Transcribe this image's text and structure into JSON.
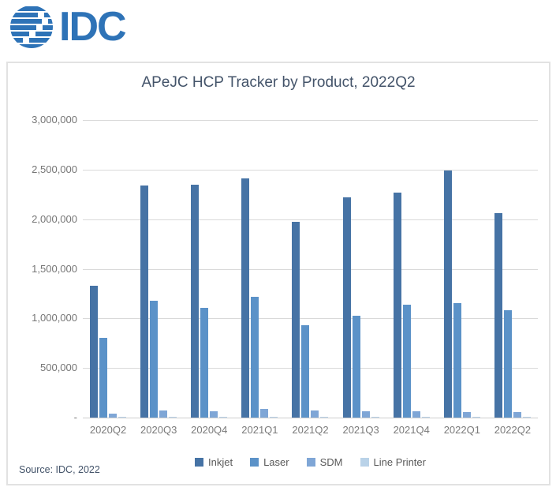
{
  "logo": {
    "text": "IDC",
    "color": "#2E73B7"
  },
  "source": "Source: IDC, 2022",
  "chart_data": {
    "type": "bar",
    "title": "APeJC HCP Tracker by Product, 2022Q2",
    "categories": [
      "2020Q2",
      "2020Q3",
      "2020Q4",
      "2021Q1",
      "2021Q2",
      "2021Q3",
      "2021Q4",
      "2022Q1",
      "2022Q2"
    ],
    "series": [
      {
        "name": "Inkjet",
        "color": "#4673A5",
        "values": [
          1330000,
          2340000,
          2350000,
          2410000,
          1970000,
          2220000,
          2270000,
          2490000,
          2060000
        ]
      },
      {
        "name": "Laser",
        "color": "#5B92C8",
        "values": [
          800000,
          1180000,
          1110000,
          1220000,
          930000,
          1030000,
          1140000,
          1150000,
          1080000
        ]
      },
      {
        "name": "SDM",
        "color": "#7FA6D6",
        "values": [
          40000,
          75000,
          60000,
          85000,
          70000,
          60000,
          65000,
          55000,
          55000
        ]
      },
      {
        "name": "Line Printer",
        "color": "#B9D2E8",
        "values": [
          5000,
          8000,
          6000,
          9000,
          7000,
          6000,
          6000,
          5000,
          5000
        ]
      }
    ],
    "xlabel": "",
    "ylabel": "",
    "ylim": [
      0,
      3000000
    ],
    "ytick_step": 500000,
    "zero_tick_label": "-",
    "grid": true,
    "legend_position": "bottom",
    "colors": {
      "gridline": "#D9D9D9",
      "axis_line": "#CFCFCF",
      "tick_text": "#767676",
      "title_text": "#44546A"
    }
  }
}
